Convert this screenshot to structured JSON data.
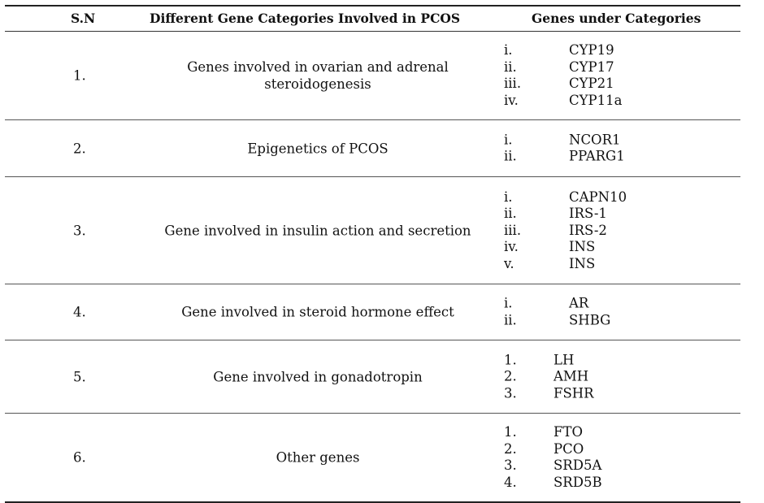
{
  "header": {
    "sn": "S.N",
    "category": "Different Gene Categories Involved in PCOS",
    "genes": "Genes under Categories"
  },
  "rows": [
    {
      "sn": "1.",
      "category": "Genes involved in ovarian and adrenal steroidogenesis",
      "genes": [
        {
          "num": "i.",
          "name": "CYP19"
        },
        {
          "num": "ii.",
          "name": "CYP17"
        },
        {
          "num": "iii.",
          "name": "CYP21"
        },
        {
          "num": "iv.",
          "name": "CYP11a"
        }
      ]
    },
    {
      "sn": "2.",
      "category": "Epigenetics of PCOS",
      "genes": [
        {
          "num": "i.",
          "name": "NCOR1"
        },
        {
          "num": "ii.",
          "name": "PPARG1"
        }
      ]
    },
    {
      "sn": "3.",
      "category": "Gene involved in insulin action and secretion",
      "genes": [
        {
          "num": "i.",
          "name": "CAPN10"
        },
        {
          "num": "ii.",
          "name": "IRS-1"
        },
        {
          "num": "iii.",
          "name": "IRS-2"
        },
        {
          "num": "iv.",
          "name": "INS"
        },
        {
          "num": "v.",
          "name": "INS"
        }
      ]
    },
    {
      "sn": "4.",
      "category": "Gene involved in steroid hormone effect",
      "genes": [
        {
          "num": "i.",
          "name": "AR"
        },
        {
          "num": "ii.",
          "name": "SHBG"
        }
      ]
    },
    {
      "sn": "5.",
      "category": "Gene involved in gonadotropin",
      "genes": [
        {
          "num": "1.",
          "name": "LH"
        },
        {
          "num": "2.",
          "name": "AMH"
        },
        {
          "num": "3.",
          "name": "FSHR"
        }
      ]
    },
    {
      "sn": "6.",
      "category": "Other genes",
      "genes": [
        {
          "num": "1.",
          "name": "FTO"
        },
        {
          "num": "2.",
          "name": "PCO"
        },
        {
          "num": "3.",
          "name": "SRD5A"
        },
        {
          "num": "4.",
          "name": "SRD5B"
        }
      ]
    }
  ]
}
